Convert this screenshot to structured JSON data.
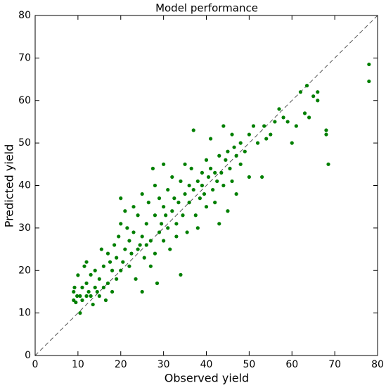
{
  "chart_data": {
    "type": "scatter",
    "title": "Model performance",
    "x_label": "Observed yield",
    "y_label": "Predicted yield",
    "series": [
      {
        "color": "#007f00",
        "x": [
          9,
          9,
          9.2,
          9.5,
          9.8,
          10,
          10.5,
          10.5,
          11,
          11,
          11.5,
          12,
          12,
          12,
          12.5,
          13,
          13,
          13.5,
          14,
          14,
          14.5,
          15,
          15,
          15.5,
          16,
          16,
          16.5,
          17,
          17,
          17.5,
          18,
          18,
          18.5,
          19,
          19,
          19.5,
          20,
          20,
          20,
          20.5,
          21,
          21,
          21.5,
          22,
          22,
          22.5,
          23,
          23,
          23.5,
          24,
          24,
          24.5,
          25,
          25,
          25,
          25.5,
          26,
          26,
          26.5,
          27,
          27,
          27.5,
          28,
          28,
          28,
          28.5,
          29,
          29,
          29.5,
          30,
          30,
          30,
          30.5,
          31,
          31,
          31.5,
          32,
          32,
          32.5,
          33,
          33,
          33.5,
          34,
          34,
          34.5,
          35,
          35,
          35.5,
          36,
          36,
          36.5,
          37,
          37,
          37.5,
          38,
          38,
          38.5,
          39,
          39,
          39.5,
          40,
          40,
          40.5,
          41,
          41,
          41.5,
          42,
          42,
          42.5,
          43,
          43,
          43.5,
          44,
          44,
          44.5,
          45,
          45,
          45.5,
          46,
          46,
          46.5,
          47,
          47,
          48,
          48,
          49,
          50,
          50,
          51,
          52,
          53,
          53.5,
          54,
          55,
          56,
          57,
          58,
          59,
          60,
          61,
          62,
          63,
          63.5,
          64,
          65,
          66,
          66,
          68,
          68,
          68.5,
          78,
          78
        ],
        "y": [
          13,
          15,
          16,
          12.5,
          14,
          18.9,
          10,
          14,
          13,
          16,
          21,
          14,
          17,
          22,
          15,
          14,
          19,
          12,
          16,
          20,
          15,
          18,
          14,
          25,
          16,
          21,
          13,
          17,
          24,
          22,
          15,
          20,
          26,
          18,
          23,
          28,
          20,
          31,
          37,
          22,
          25,
          34,
          30,
          21,
          27,
          24,
          35,
          29,
          18,
          25,
          33,
          26,
          15,
          28,
          38,
          23,
          26,
          31,
          36,
          21,
          27,
          44,
          24,
          33,
          40,
          17,
          29,
          37,
          31,
          27,
          35,
          45,
          33,
          39,
          30,
          25,
          34,
          42,
          37,
          28,
          31,
          36,
          41,
          19,
          33,
          38,
          45,
          29,
          40,
          36,
          44,
          53,
          39,
          33,
          41,
          30,
          37,
          43,
          40,
          38,
          46,
          35,
          42,
          44,
          51,
          39,
          43,
          36,
          41,
          47,
          31,
          43,
          54,
          40,
          46,
          48,
          34,
          44,
          52,
          41,
          49,
          47,
          38,
          50,
          45,
          48,
          52,
          42,
          54,
          50,
          42,
          54,
          51,
          52,
          55,
          58,
          56,
          55,
          50,
          54,
          62,
          57,
          63.5,
          56,
          61,
          60,
          62,
          53,
          52,
          45,
          68.5,
          64.5
        ]
      }
    ],
    "xlim": [
      0,
      80
    ],
    "ylim": [
      0,
      80
    ],
    "xticks": [
      0,
      10,
      20,
      30,
      40,
      50,
      60,
      70,
      80
    ],
    "yticks": [
      0,
      10,
      20,
      30,
      40,
      50,
      60,
      70,
      80
    ]
  }
}
